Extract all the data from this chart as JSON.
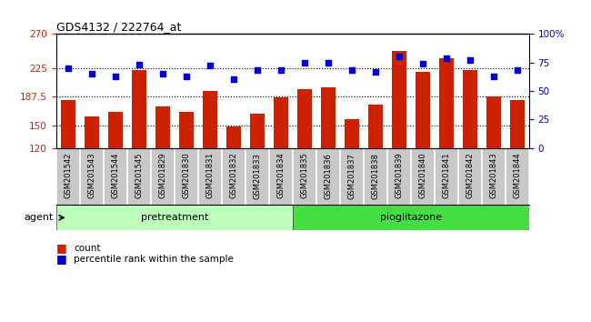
{
  "title": "GDS4132 / 222764_at",
  "samples": [
    "GSM201542",
    "GSM201543",
    "GSM201544",
    "GSM201545",
    "GSM201829",
    "GSM201830",
    "GSM201831",
    "GSM201832",
    "GSM201833",
    "GSM201834",
    "GSM201835",
    "GSM201836",
    "GSM201837",
    "GSM201838",
    "GSM201839",
    "GSM201840",
    "GSM201841",
    "GSM201842",
    "GSM201843",
    "GSM201844"
  ],
  "counts": [
    183,
    162,
    167,
    222,
    175,
    168,
    195,
    148,
    165,
    187,
    197,
    200,
    158,
    177,
    248,
    220,
    238,
    222,
    188,
    183
  ],
  "percentiles": [
    70,
    65,
    63,
    73,
    65,
    63,
    72,
    60,
    68,
    68,
    75,
    75,
    68,
    67,
    80,
    74,
    79,
    77,
    63,
    68
  ],
  "pretreatment_count": 10,
  "pioglitazone_count": 10,
  "ylim_left": [
    120,
    270
  ],
  "ylim_right": [
    0,
    100
  ],
  "yticks_left": [
    120,
    150,
    187.5,
    225,
    270
  ],
  "ytick_labels_left": [
    "120",
    "150",
    "187.5",
    "225",
    "270"
  ],
  "yticks_right": [
    0,
    25,
    50,
    75,
    100
  ],
  "ytick_labels_right": [
    "0",
    "25",
    "50",
    "75",
    "100%"
  ],
  "bar_color": "#cc2200",
  "dot_color": "#0000cc",
  "pretreatment_color": "#bbffbb",
  "pioglitazone_color": "#44dd44",
  "xlabel_bg": "#c8c8c8",
  "agent_label": "agent",
  "pretreatment_label": "pretreatment",
  "pioglitazone_label": "pioglitazone",
  "legend_count_label": "count",
  "legend_pct_label": "percentile rank within the sample",
  "grid_lines": [
    150,
    187.5,
    225
  ],
  "plot_bg": "#ffffff"
}
